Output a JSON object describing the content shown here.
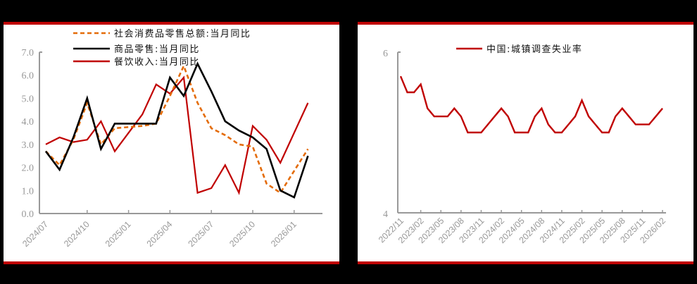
{
  "chart_data": [
    {
      "type": "line",
      "title": "",
      "xlabel": "",
      "ylabel": "",
      "ylim": [
        0,
        7
      ],
      "yticks": [
        "0.0",
        "1.0",
        "2.0",
        "3.0",
        "4.0",
        "5.0",
        "6.0",
        "7.0"
      ],
      "xtick_labels": [
        "2024/07",
        "2024/10",
        "2025/01",
        "2025/04",
        "2025/07",
        "2025/10",
        "2026/01"
      ],
      "grid": false,
      "legend_position": "top",
      "x": [
        "2024/07",
        "2024/08",
        "2024/09",
        "2024/10",
        "2024/11",
        "2024/12",
        "2025/01",
        "2025/02",
        "2025/03",
        "2025/04",
        "2025/05",
        "2025/06",
        "2025/07",
        "2025/08",
        "2025/09",
        "2025/10",
        "2025/11",
        "2025/12",
        "2026/01",
        "2026/02"
      ],
      "series": [
        {
          "name": "社会消费品零售总额:当月同比",
          "color": "#e46c0a",
          "style": "dashed",
          "values": [
            2.7,
            2.1,
            3.2,
            4.8,
            3.0,
            3.7,
            null,
            3.8,
            3.9,
            5.1,
            6.4,
            4.8,
            3.7,
            3.4,
            3.0,
            2.9,
            1.3,
            0.9,
            null,
            2.8
          ]
        },
        {
          "name": "商品零售:当月同比",
          "color": "#000000",
          "style": "solid",
          "values": [
            2.7,
            1.9,
            3.3,
            5.0,
            2.8,
            3.9,
            null,
            3.9,
            3.9,
            5.9,
            5.1,
            6.5,
            5.3,
            4.0,
            3.6,
            3.3,
            2.8,
            1.0,
            0.7,
            2.5
          ]
        },
        {
          "name": "餐饮收入:当月同比",
          "color": "#c00000",
          "style": "solid",
          "values": [
            3.0,
            3.3,
            3.1,
            3.2,
            4.0,
            2.7,
            null,
            4.3,
            5.6,
            5.2,
            5.9,
            0.9,
            1.1,
            2.1,
            0.9,
            3.8,
            3.2,
            2.2,
            null,
            4.8
          ]
        }
      ]
    },
    {
      "type": "line",
      "title": "",
      "xlabel": "",
      "ylabel": "",
      "ylim": [
        4,
        6
      ],
      "yticks": [
        "4",
        "6"
      ],
      "xtick_labels": [
        "2022/11",
        "2023/02",
        "2023/05",
        "2023/08",
        "2023/11",
        "2024/02",
        "2024/05",
        "2024/08",
        "2024/11",
        "2025/02",
        "2025/05",
        "2025/08",
        "2025/11",
        "2026/02"
      ],
      "grid": false,
      "legend_position": "top",
      "series": [
        {
          "name": "中国:城镇调查失业率",
          "color": "#c00000",
          "style": "solid",
          "values": [
            5.7,
            5.5,
            5.5,
            5.6,
            5.3,
            5.2,
            5.2,
            5.2,
            5.3,
            5.2,
            5.0,
            5.0,
            5.0,
            5.1,
            5.2,
            5.3,
            5.2,
            5.0,
            5.0,
            5.0,
            5.2,
            5.3,
            5.1,
            5.0,
            5.0,
            5.1,
            5.2,
            5.4,
            5.2,
            5.1,
            5.0,
            5.0,
            5.2,
            5.3,
            5.2,
            5.1,
            5.1,
            5.1,
            5.2,
            5.3
          ]
        }
      ]
    }
  ],
  "left_panel": {
    "legend": [
      {
        "label": "社会消费品零售总额:当月同比"
      },
      {
        "label": "商品零售:当月同比"
      },
      {
        "label": "餐饮收入:当月同比"
      }
    ]
  },
  "right_panel": {
    "legend": [
      {
        "label": "中国:城镇调查失业率"
      }
    ]
  }
}
